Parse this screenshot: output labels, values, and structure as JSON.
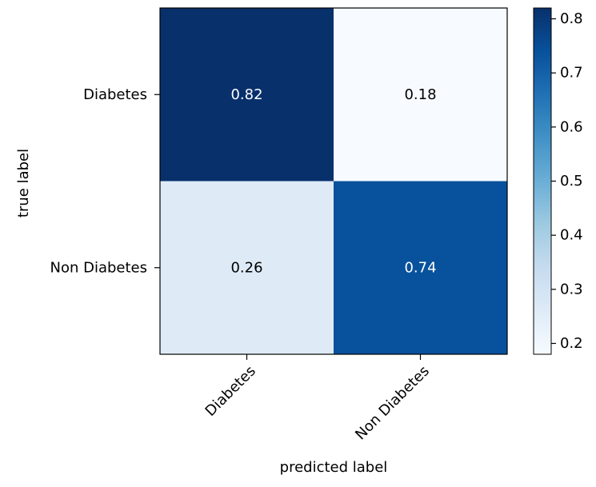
{
  "chart_data": {
    "type": "heatmap",
    "title": "",
    "xlabel": "predicted label",
    "ylabel": "true label",
    "x_categories": [
      "Diabetes",
      "Non Diabetes"
    ],
    "y_categories": [
      "Diabetes",
      "Non Diabetes"
    ],
    "values": [
      [
        0.82,
        0.18
      ],
      [
        0.26,
        0.74
      ]
    ],
    "value_labels": [
      [
        "0.82",
        "0.18"
      ],
      [
        "0.26",
        "0.74"
      ]
    ],
    "colormap": "Blues",
    "color_range": [
      0.18,
      0.82
    ],
    "colorbar_ticks": [
      {
        "value": 0.2,
        "label": "0.2"
      },
      {
        "value": 0.3,
        "label": "0.3"
      },
      {
        "value": 0.4,
        "label": "0.4"
      },
      {
        "value": 0.5,
        "label": "0.5"
      },
      {
        "value": 0.6,
        "label": "0.6"
      },
      {
        "value": 0.7,
        "label": "0.7"
      },
      {
        "value": 0.8,
        "label": "0.8"
      }
    ]
  }
}
